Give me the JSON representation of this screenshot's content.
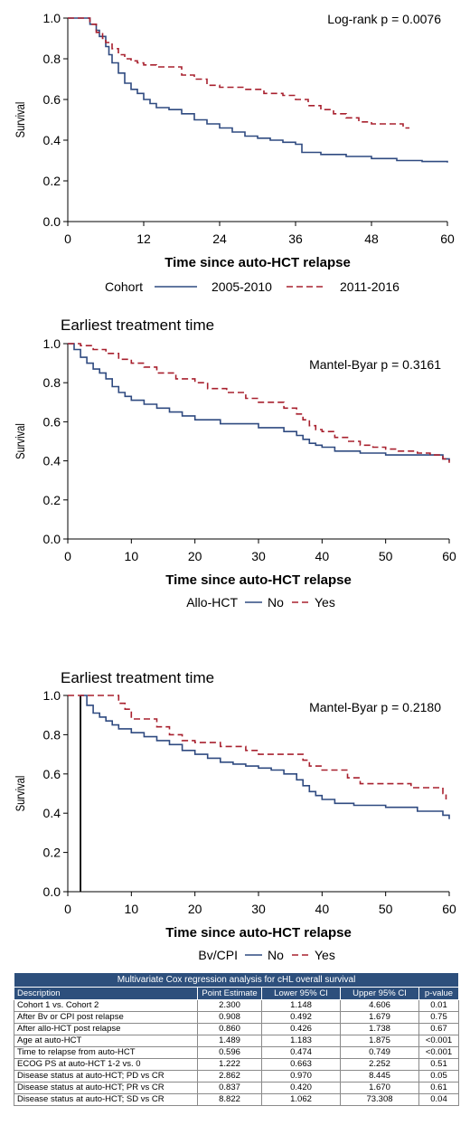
{
  "colors": {
    "series1": "#2f4a80",
    "series2": "#a8202e",
    "axis": "#000000",
    "table_header": "#2d4f7c"
  },
  "chart_data": [
    {
      "type": "line",
      "title": "",
      "xlabel": "Time since auto-HCT relapse",
      "ylabel": "Survival",
      "xlim": [
        0,
        60
      ],
      "ylim": [
        0,
        1
      ],
      "xticks": [
        "0",
        "12",
        "24",
        "36",
        "48",
        "60"
      ],
      "yticks": [
        "0.0",
        "0.2",
        "0.4",
        "0.6",
        "0.8",
        "1.0"
      ],
      "annotation": "Log-rank p = 0.0076",
      "legend_title": "Cohort",
      "legend_position": "bottom",
      "series": [
        {
          "name": "2005-2010",
          "style": "solid",
          "x": [
            0,
            3.5,
            4.5,
            5,
            6,
            6.5,
            7,
            8,
            9,
            10,
            11,
            12,
            13,
            14,
            16,
            18,
            20,
            22,
            24,
            26,
            28,
            30,
            32,
            34,
            36,
            37,
            40,
            44,
            48,
            52,
            56,
            60
          ],
          "y": [
            1.0,
            0.97,
            0.94,
            0.91,
            0.86,
            0.82,
            0.78,
            0.73,
            0.68,
            0.65,
            0.63,
            0.6,
            0.58,
            0.56,
            0.55,
            0.53,
            0.5,
            0.48,
            0.46,
            0.44,
            0.42,
            0.41,
            0.4,
            0.39,
            0.38,
            0.34,
            0.33,
            0.32,
            0.31,
            0.3,
            0.295,
            0.29
          ]
        },
        {
          "name": "2011-2016",
          "style": "dashed",
          "x": [
            0,
            3.5,
            4.5,
            5.5,
            6,
            7,
            8,
            9,
            10,
            11,
            12,
            14,
            18,
            20,
            22,
            24,
            28,
            31,
            34,
            36,
            38,
            40,
            42,
            44,
            46,
            48,
            50,
            52,
            53,
            54
          ],
          "y": [
            1.0,
            0.97,
            0.93,
            0.9,
            0.88,
            0.85,
            0.82,
            0.8,
            0.79,
            0.78,
            0.77,
            0.76,
            0.72,
            0.7,
            0.67,
            0.66,
            0.65,
            0.63,
            0.62,
            0.6,
            0.57,
            0.55,
            0.53,
            0.51,
            0.49,
            0.48,
            0.48,
            0.48,
            0.46,
            0.46
          ]
        }
      ]
    },
    {
      "type": "line",
      "title": "Earliest treatment time",
      "xlabel": "Time since auto-HCT relapse",
      "ylabel": "Survival",
      "xlim": [
        0,
        60
      ],
      "ylim": [
        0,
        1
      ],
      "xticks": [
        "0",
        "10",
        "20",
        "30",
        "40",
        "50",
        "60"
      ],
      "yticks": [
        "0.0",
        "0.2",
        "0.4",
        "0.6",
        "0.8",
        "1.0"
      ],
      "annotation": "Mantel-Byar p = 0.3161",
      "legend_title": "Allo-HCT",
      "legend_position": "bottom",
      "series": [
        {
          "name": "No",
          "style": "solid",
          "x": [
            0,
            1,
            2,
            3,
            4,
            5,
            6,
            7,
            8,
            9,
            10,
            12,
            14,
            16,
            18,
            20,
            24,
            30,
            34,
            36,
            37,
            38,
            39,
            40,
            42,
            46,
            50,
            55,
            59,
            60
          ],
          "y": [
            1.0,
            0.97,
            0.93,
            0.9,
            0.87,
            0.85,
            0.82,
            0.78,
            0.75,
            0.73,
            0.71,
            0.69,
            0.67,
            0.65,
            0.63,
            0.61,
            0.59,
            0.57,
            0.55,
            0.53,
            0.51,
            0.49,
            0.48,
            0.47,
            0.45,
            0.44,
            0.43,
            0.43,
            0.41,
            0.4
          ]
        },
        {
          "name": "Yes",
          "style": "dashed",
          "x": [
            0,
            2,
            4,
            6,
            8,
            10,
            12,
            14,
            17,
            20,
            22,
            25,
            28,
            30,
            34,
            36,
            37,
            38,
            39,
            40,
            42,
            44,
            46,
            48,
            50,
            52,
            55,
            57,
            59,
            60
          ],
          "y": [
            1.0,
            0.99,
            0.97,
            0.95,
            0.92,
            0.9,
            0.88,
            0.85,
            0.82,
            0.8,
            0.77,
            0.75,
            0.72,
            0.7,
            0.67,
            0.64,
            0.61,
            0.58,
            0.56,
            0.55,
            0.52,
            0.5,
            0.48,
            0.47,
            0.46,
            0.45,
            0.44,
            0.43,
            0.41,
            0.39
          ]
        }
      ]
    },
    {
      "type": "line",
      "title": "Earliest treatment time",
      "xlabel": "Time since auto-HCT relapse",
      "ylabel": "Survival",
      "xlim": [
        0,
        60
      ],
      "ylim": [
        0,
        1
      ],
      "xticks": [
        "0",
        "10",
        "20",
        "30",
        "40",
        "50",
        "60"
      ],
      "yticks": [
        "0.0",
        "0.2",
        "0.4",
        "0.6",
        "0.8",
        "1.0"
      ],
      "annotation": "Mantel-Byar p = 0.2180",
      "legend_title": "Bv/CPI",
      "legend_position": "bottom",
      "reference_x": 2,
      "series": [
        {
          "name": "No",
          "style": "solid",
          "x": [
            2,
            3,
            4,
            5,
            6,
            7,
            8,
            10,
            12,
            14,
            16,
            18,
            20,
            22,
            24,
            26,
            28,
            30,
            32,
            34,
            36,
            37,
            38,
            39,
            40,
            42,
            45,
            50,
            55,
            59,
            60
          ],
          "y": [
            1.0,
            0.95,
            0.91,
            0.89,
            0.87,
            0.85,
            0.83,
            0.81,
            0.79,
            0.77,
            0.75,
            0.72,
            0.7,
            0.68,
            0.66,
            0.65,
            0.64,
            0.63,
            0.62,
            0.6,
            0.57,
            0.54,
            0.51,
            0.49,
            0.47,
            0.45,
            0.44,
            0.43,
            0.41,
            0.39,
            0.37
          ]
        },
        {
          "name": "Yes",
          "style": "dashed",
          "x": [
            0,
            6,
            8,
            9,
            10,
            14,
            16,
            18,
            20,
            24,
            28,
            30,
            34,
            36,
            37,
            38,
            40,
            44,
            46,
            50,
            54,
            58,
            59,
            59.5
          ],
          "y": [
            1.0,
            1.0,
            0.96,
            0.93,
            0.88,
            0.84,
            0.8,
            0.77,
            0.76,
            0.74,
            0.72,
            0.7,
            0.7,
            0.7,
            0.67,
            0.64,
            0.62,
            0.58,
            0.55,
            0.55,
            0.53,
            0.53,
            0.5,
            0.47
          ]
        }
      ]
    }
  ],
  "table": {
    "caption": "Multivariate Cox regression analysis for cHL overall survival",
    "headers": [
      "Description",
      "Point Estimate",
      "Lower 95% CI",
      "Upper 95% CI",
      "p-value"
    ],
    "rows": [
      [
        "Cohort 1 vs. Cohort 2",
        "2.300",
        "1.148",
        "4.606",
        "0.01"
      ],
      [
        "After Bv or CPI post relapse",
        "0.908",
        "0.492",
        "1.679",
        "0.75"
      ],
      [
        "After allo-HCT post relapse",
        "0.860",
        "0.426",
        "1.738",
        "0.67"
      ],
      [
        "Age at auto-HCT",
        "1.489",
        "1.183",
        "1.875",
        "<0.001"
      ],
      [
        "Time to relapse from auto-HCT",
        "0.596",
        "0.474",
        "0.749",
        "<0.001"
      ],
      [
        "ECOG PS at auto-HCT 1-2 vs. 0",
        "1.222",
        "0.663",
        "2.252",
        "0.51"
      ],
      [
        "Disease status at auto-HCT; PD vs CR",
        "2.862",
        "0.970",
        "8.445",
        "0.05"
      ],
      [
        "Disease status at auto-HCT; PR vs CR",
        "0.837",
        "0.420",
        "1.670",
        "0.61"
      ],
      [
        "Disease status at auto-HCT; SD vs CR",
        "8.822",
        "1.062",
        "73.308",
        "0.04"
      ]
    ]
  }
}
